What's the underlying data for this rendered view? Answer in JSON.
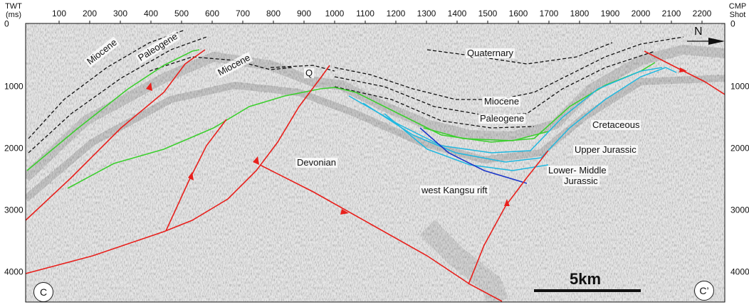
{
  "axes": {
    "left_label": "TWT\n(ms)",
    "right_label": "CMP\nShot",
    "top_ticks": [
      "100",
      "200",
      "300",
      "400",
      "500",
      "600",
      "700",
      "800",
      "900",
      "1000",
      "1100",
      "1200",
      "1300",
      "1400",
      "1500",
      "1600",
      "1700",
      "1800",
      "1900",
      "2000",
      "2100",
      "2200"
    ],
    "side_ticks": [
      "0",
      "1000",
      "2000",
      "3000",
      "4000"
    ]
  },
  "units": {
    "miocene_left": "Miocene",
    "paleogene_left": "Paleogene",
    "miocene_mid": "Miocene",
    "q": "Q",
    "quaternary": "Quaternary",
    "miocene_right": "Miocene",
    "paleogene_right": "Paleogene",
    "cretaceous": "Cretaceous",
    "upper_jurassic": "Upper Jurassic",
    "lower_middle_jurassic_1": "Lower- Middle",
    "lower_middle_jurassic_2": "Jurassic",
    "devonian": "Devonian",
    "rift": "west Kangsu rift"
  },
  "labels": {
    "start": "C",
    "end": "C’",
    "north": "N",
    "scale": "5km"
  },
  "colors": {
    "fault": "#e8201c",
    "horizon_green": "#3ccf2e",
    "horizon_cyan": "#1fb8e0",
    "horizon_blue": "#1a35c9",
    "seismic_bg": "#d9d9d9"
  }
}
